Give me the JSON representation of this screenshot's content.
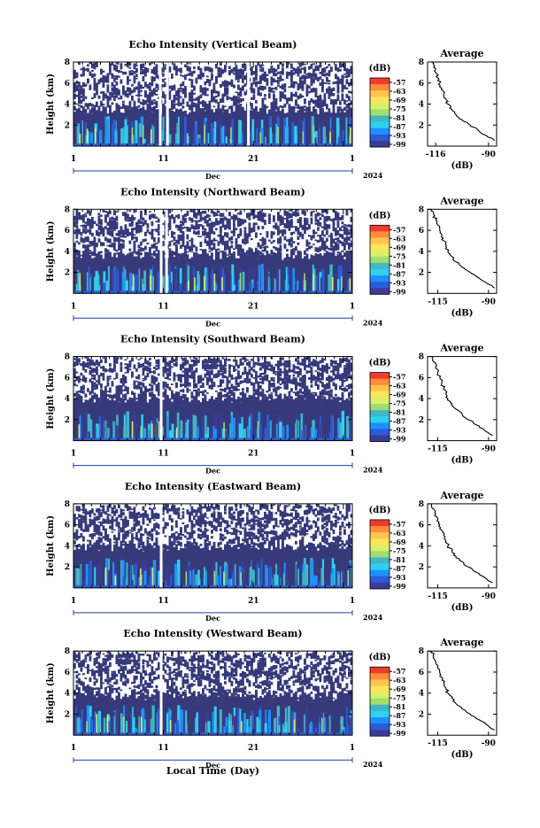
{
  "figure": {
    "xlabel": "Local Time (Day)"
  },
  "colorbar": {
    "unit": "(dB)",
    "ticks": [
      "-57",
      "-63",
      "-69",
      "-75",
      "-81",
      "-87",
      "-93",
      "-99"
    ],
    "colors": [
      "#ef3b2c",
      "#fd8d3c",
      "#fec44f",
      "#ffe45c",
      "#d9f06a",
      "#a1dd70",
      "#41b6c4",
      "#2fd0f0",
      "#1e90ff",
      "#2b5bd8",
      "#3c3c96"
    ]
  },
  "colors": {
    "background_noise": "#363a7a",
    "no_data": "#ffffff",
    "line": "#000000"
  },
  "chart_data": [
    {
      "type": "heatmap",
      "title": "Echo Intensity (Vertical Beam)",
      "ylabel": "Height (km)",
      "ylim": [
        0,
        8
      ],
      "yticks": [
        "2",
        "4",
        "6",
        "8"
      ],
      "xticks": [
        "1",
        "11",
        "21",
        "1"
      ],
      "xlim_days": [
        1,
        32
      ],
      "month_label": "Dec",
      "year_label": "2024",
      "zlim_dB": [
        -99,
        -57
      ],
      "data_top_km": 3.4,
      "gaps_day": [
        10.5,
        11.3,
        20.3
      ],
      "average": {
        "title": "Average",
        "xlabel": "(dB)",
        "xticks": [
          "-116",
          "-90"
        ],
        "xlim": [
          -120,
          -86
        ],
        "ylim": [
          0,
          8
        ],
        "yticks": [
          "2",
          "4",
          "6",
          "8"
        ],
        "height_km": [
          0.5,
          1,
          1.5,
          2,
          2.5,
          3,
          3.5,
          4,
          4.5,
          5,
          5.5,
          6,
          6.5,
          7,
          7.5,
          8
        ],
        "value_dB": [
          -87,
          -91,
          -95,
          -99,
          -103,
          -106,
          -108,
          -110,
          -111,
          -112,
          -113,
          -114,
          -115,
          -116,
          -117,
          -118
        ]
      }
    },
    {
      "type": "heatmap",
      "title": "Echo Intensity (Northward Beam)",
      "ylabel": "Height (km)",
      "ylim": [
        0,
        8
      ],
      "yticks": [
        "2",
        "4",
        "6",
        "8"
      ],
      "xticks": [
        "1",
        "11",
        "21",
        "1"
      ],
      "xlim_days": [
        1,
        32
      ],
      "month_label": "Dec",
      "year_label": "2024",
      "zlim_dB": [
        -99,
        -57
      ],
      "data_top_km": 3.6,
      "gaps_day": [
        10.6,
        11.2
      ],
      "average": {
        "title": "Average",
        "xlabel": "(dB)",
        "xticks": [
          "-115",
          "-90"
        ],
        "xlim": [
          -120,
          -86
        ],
        "ylim": [
          0,
          8
        ],
        "yticks": [
          "2",
          "4",
          "6",
          "8"
        ],
        "height_km": [
          0.5,
          1,
          1.5,
          2,
          2.5,
          3,
          3.5,
          4,
          4.5,
          5,
          5.5,
          6,
          6.5,
          7,
          7.5,
          8
        ],
        "value_dB": [
          -87,
          -91,
          -95,
          -99,
          -103,
          -106,
          -108,
          -110,
          -111,
          -112,
          -113,
          -114,
          -115,
          -116,
          -117,
          -118
        ]
      }
    },
    {
      "type": "heatmap",
      "title": "Echo Intensity (Southward Beam)",
      "ylabel": "Height (km)",
      "ylim": [
        0,
        8
      ],
      "yticks": [
        "2",
        "4",
        "6",
        "8"
      ],
      "xticks": [
        "1",
        "11",
        "21",
        "1"
      ],
      "xlim_days": [
        1,
        32
      ],
      "month_label": "Dec",
      "year_label": "2024",
      "zlim_dB": [
        -99,
        -57
      ],
      "data_top_km": 4.0,
      "gaps_day": [
        10.6
      ],
      "average": {
        "title": "Average",
        "xlabel": "(dB)",
        "xticks": [
          "-115",
          "-90"
        ],
        "xlim": [
          -120,
          -86
        ],
        "ylim": [
          0,
          8
        ],
        "yticks": [
          "2",
          "4",
          "6",
          "8"
        ],
        "height_km": [
          0.5,
          1,
          1.5,
          2,
          2.5,
          3,
          3.5,
          4,
          4.5,
          5,
          5.5,
          6,
          6.5,
          7,
          7.5,
          8
        ],
        "value_dB": [
          -88,
          -92,
          -96,
          -100,
          -103,
          -106,
          -108,
          -110,
          -111,
          -112,
          -113,
          -114,
          -115,
          -116,
          -117,
          -118
        ]
      }
    },
    {
      "type": "heatmap",
      "title": "Echo Intensity (Eastward Beam)",
      "ylabel": "Height (km)",
      "ylim": [
        0,
        8
      ],
      "yticks": [
        "2",
        "4",
        "6",
        "8"
      ],
      "xticks": [
        "1",
        "11",
        "21",
        "1"
      ],
      "xlim_days": [
        1,
        32
      ],
      "month_label": "Dec",
      "year_label": "2024",
      "zlim_dB": [
        -99,
        -57
      ],
      "data_top_km": 3.9,
      "gaps_day": [
        10.6
      ],
      "average": {
        "title": "Average",
        "xlabel": "(dB)",
        "xticks": [
          "-115",
          "-90"
        ],
        "xlim": [
          -120,
          -86
        ],
        "ylim": [
          0,
          8
        ],
        "yticks": [
          "2",
          "4",
          "6",
          "8"
        ],
        "height_km": [
          0.5,
          1,
          1.5,
          2,
          2.5,
          3,
          3.5,
          4,
          4.5,
          5,
          5.5,
          6,
          6.5,
          7,
          7.5,
          8
        ],
        "value_dB": [
          -88,
          -92,
          -96,
          -100,
          -103,
          -106,
          -108,
          -110,
          -111,
          -112,
          -113,
          -114,
          -115,
          -116,
          -117,
          -118
        ]
      }
    },
    {
      "type": "heatmap",
      "title": "Echo Intensity (Westward Beam)",
      "ylabel": "Height (km)",
      "ylim": [
        0,
        8
      ],
      "yticks": [
        "2",
        "4",
        "6",
        "8"
      ],
      "xticks": [
        "1",
        "11",
        "21",
        "1"
      ],
      "xlim_days": [
        1,
        32
      ],
      "month_label": "Dec",
      "year_label": "2024",
      "zlim_dB": [
        -99,
        -57
      ],
      "data_top_km": 3.7,
      "gaps_day": [
        10.6
      ],
      "average": {
        "title": "Average",
        "xlabel": "(dB)",
        "xticks": [
          "-115",
          "-90"
        ],
        "xlim": [
          -120,
          -86
        ],
        "ylim": [
          0,
          8
        ],
        "yticks": [
          "2",
          "4",
          "6",
          "8"
        ],
        "height_km": [
          0.5,
          1,
          1.5,
          2,
          2.5,
          3,
          3.5,
          4,
          4.5,
          5,
          5.5,
          6,
          6.5,
          7,
          7.5,
          8
        ],
        "value_dB": [
          -87,
          -91,
          -95,
          -99,
          -103,
          -106,
          -108,
          -110,
          -111,
          -112,
          -113,
          -114,
          -115,
          -116,
          -117,
          -118
        ]
      }
    }
  ]
}
